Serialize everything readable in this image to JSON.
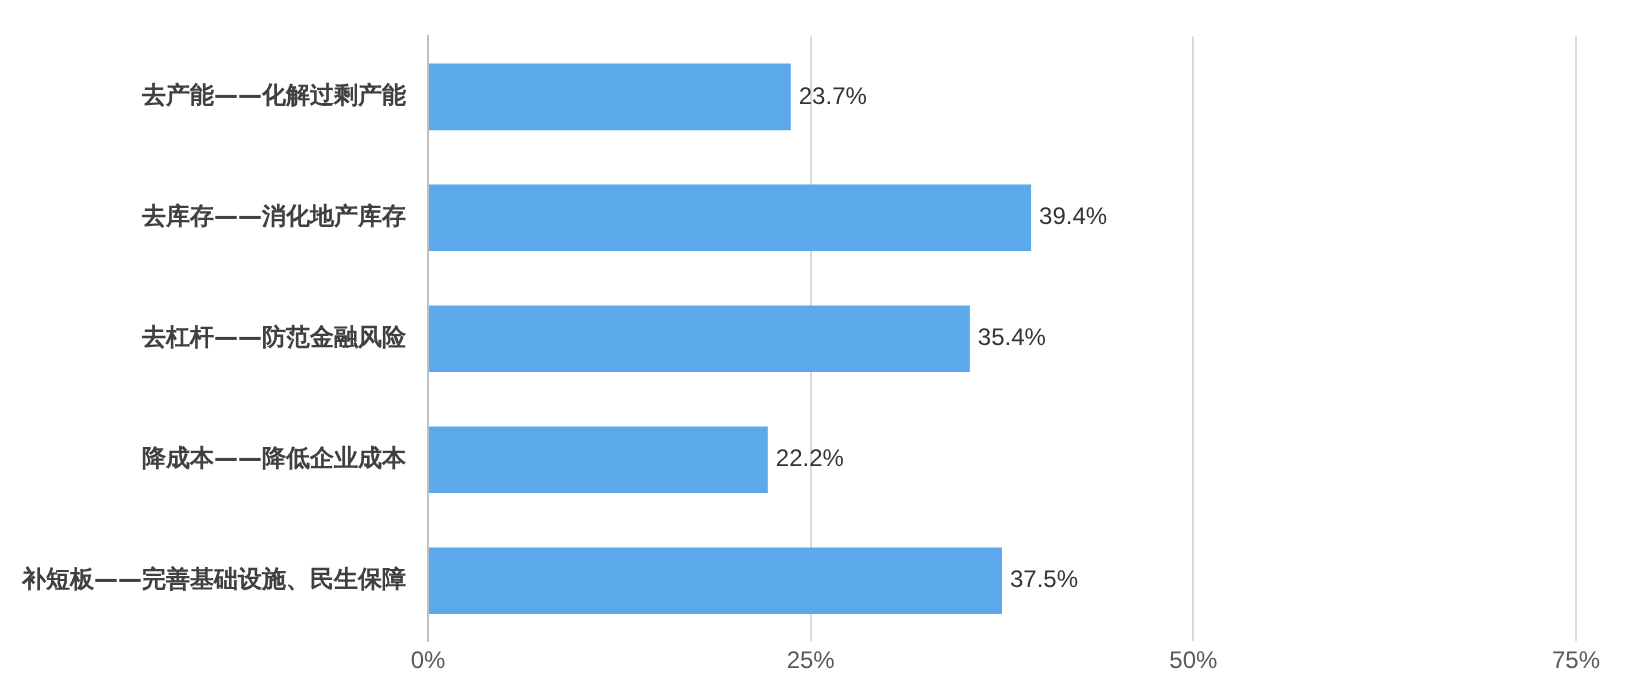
{
  "chart_data": {
    "type": "bar",
    "orientation": "horizontal",
    "categories": [
      "去产能——化解过剩产能",
      "去库存——消化地产库存",
      "去杠杆——防范金融风险",
      "降成本——降低企业成本",
      "补短板——完善基础设施、民生保障"
    ],
    "values": [
      23.7,
      39.4,
      35.4,
      22.2,
      37.5
    ],
    "value_labels": [
      "23.7%",
      "39.4%",
      "35.4%",
      "22.2%",
      "37.5%"
    ],
    "color": "#5ba8ea",
    "xlim": [
      0,
      75
    ],
    "xticks": [
      {
        "value": 0,
        "label": "0%"
      },
      {
        "value": 25,
        "label": "25%"
      },
      {
        "value": 50,
        "label": "50%"
      },
      {
        "value": 75,
        "label": "75%"
      }
    ],
    "grid": "x",
    "legend": false
  }
}
